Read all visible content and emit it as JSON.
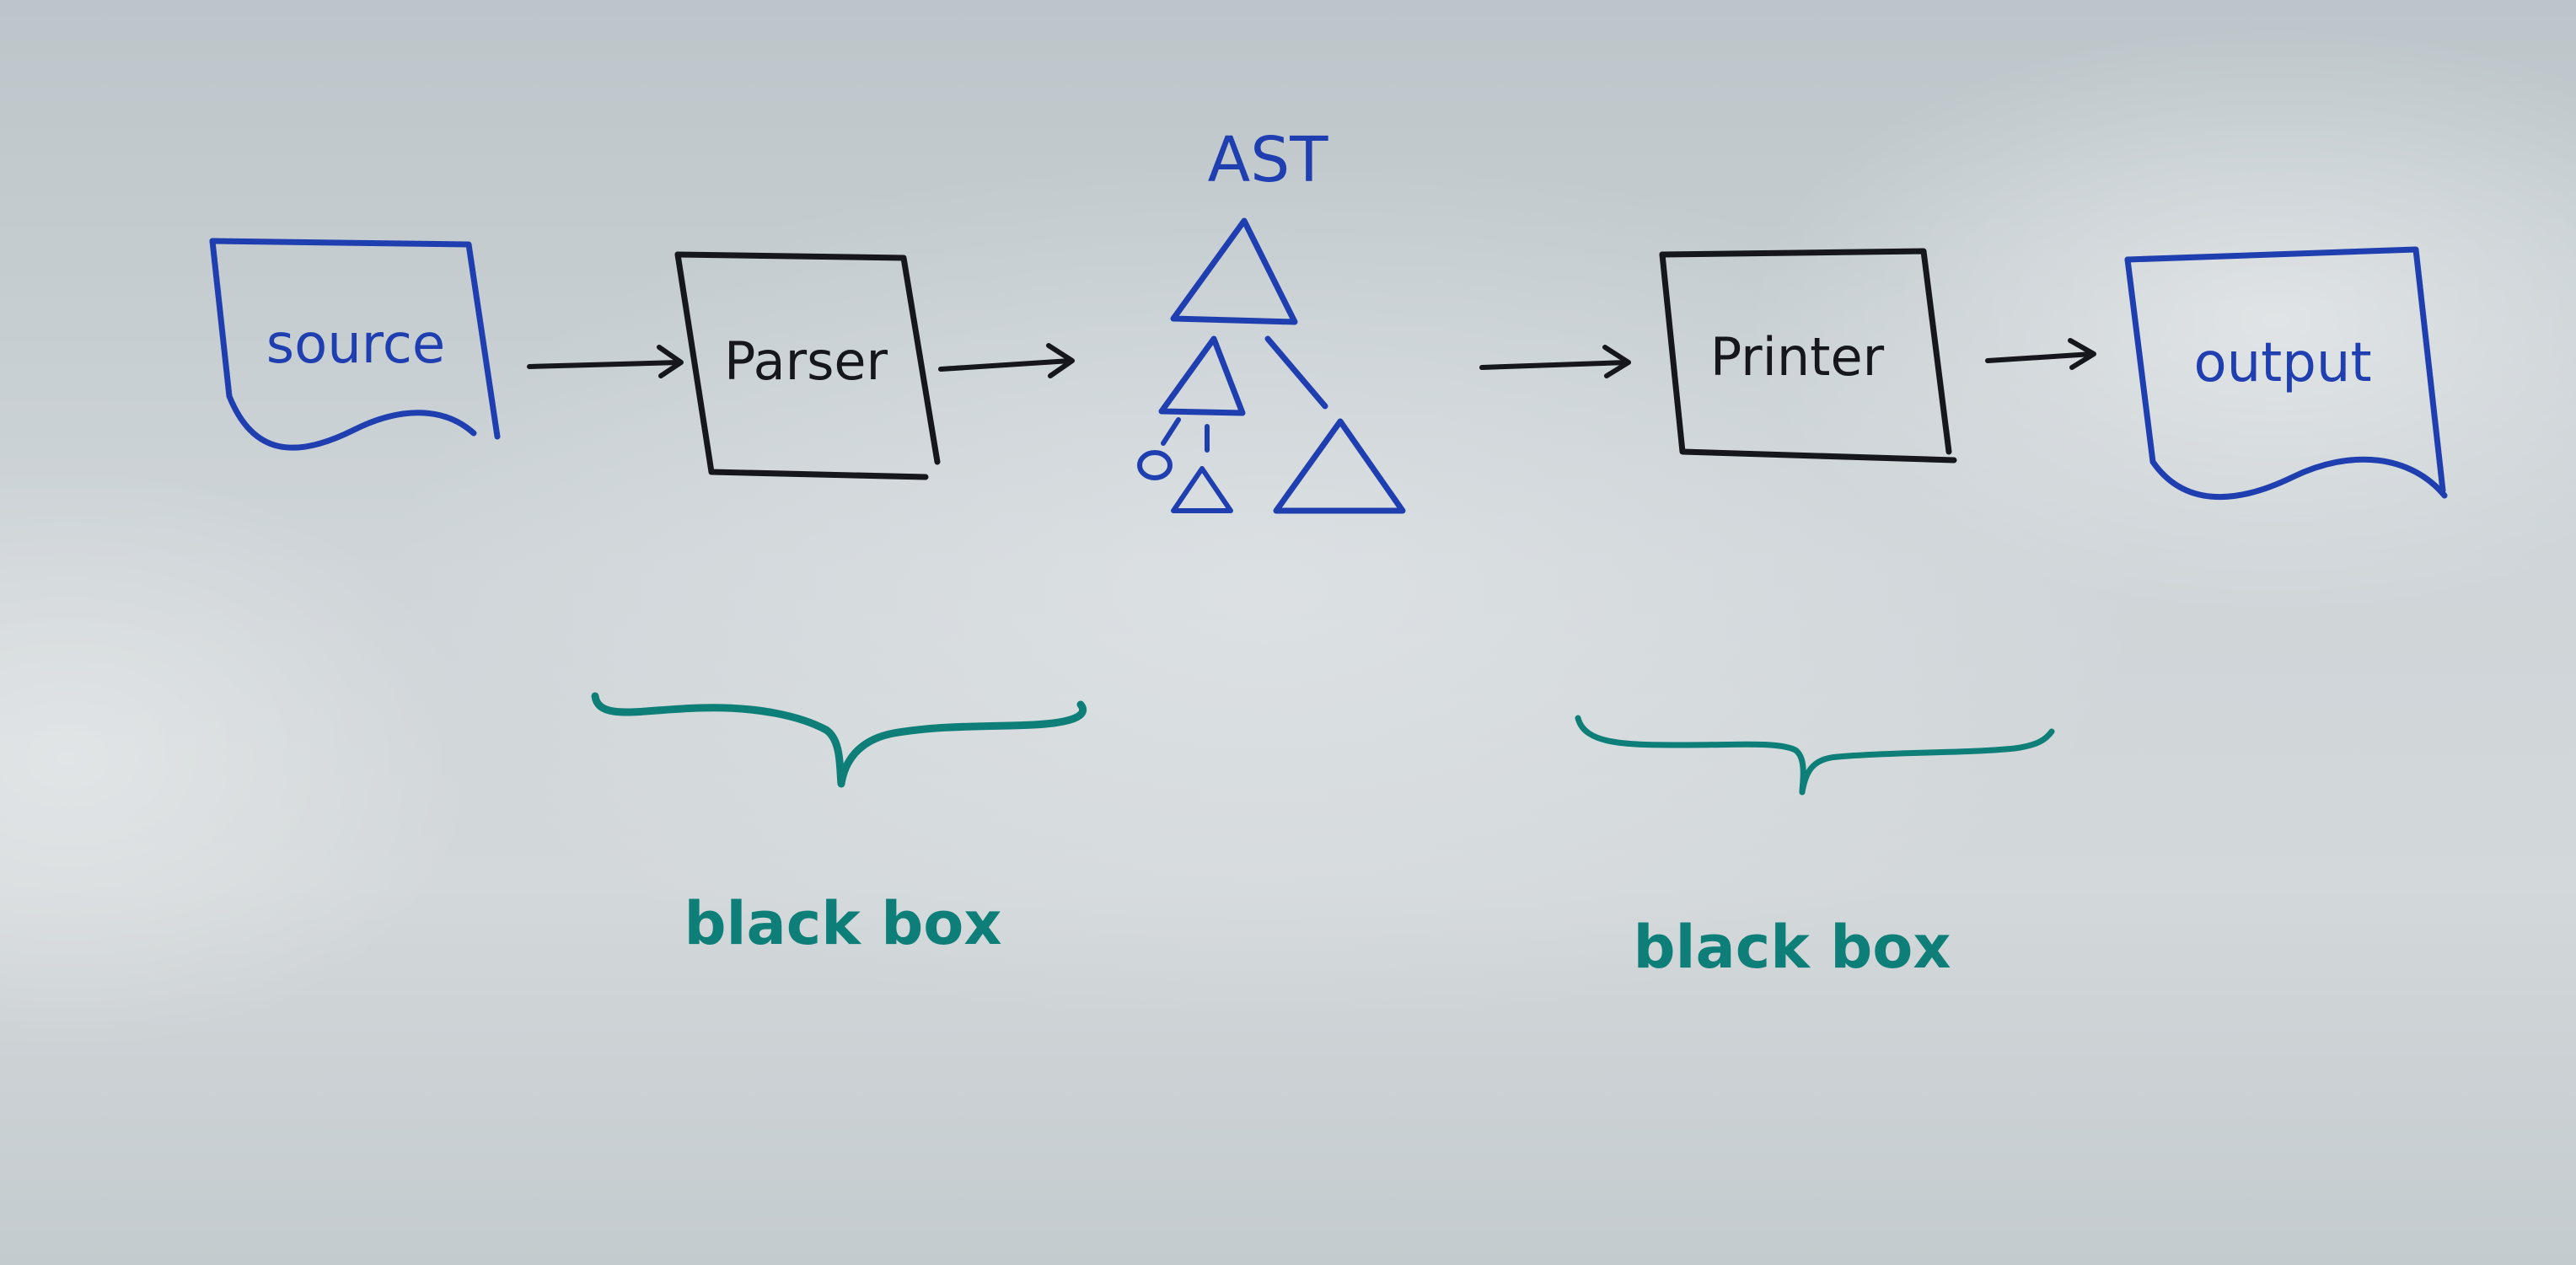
{
  "nodes": {
    "source": {
      "label": "source"
    },
    "parser": {
      "label": "Parser"
    },
    "ast": {
      "label": "AST"
    },
    "printer": {
      "label": "Printer"
    },
    "output": {
      "label": "output"
    }
  },
  "annotations": {
    "left_brace_caption": "black box",
    "right_brace_caption": "black box"
  },
  "colors": {
    "blue_marker": "#1f3fb0",
    "black_marker": "#15171c",
    "teal_marker": "#0e7f78"
  }
}
